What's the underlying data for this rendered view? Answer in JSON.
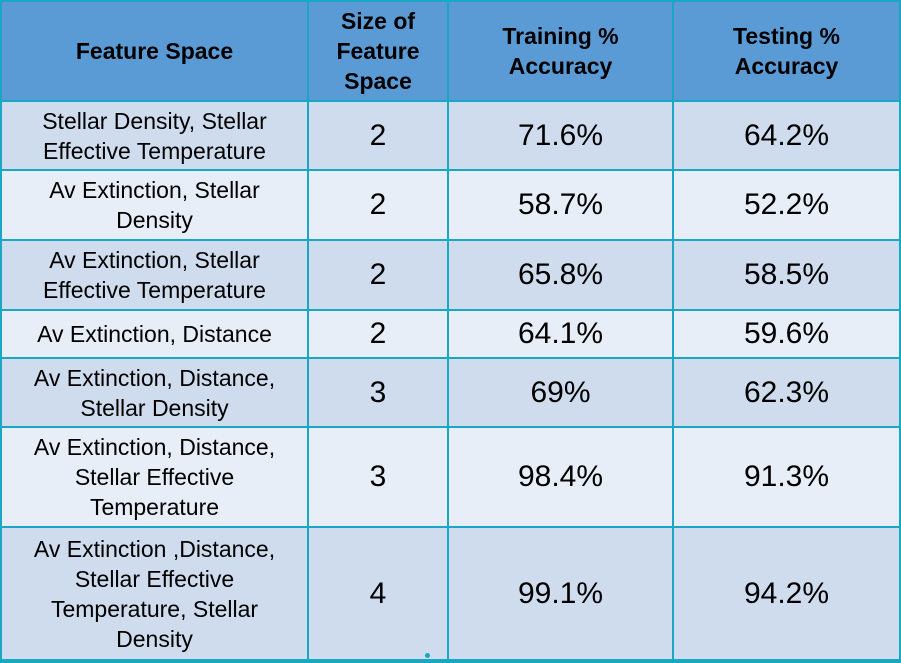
{
  "chart_data": {
    "type": "table",
    "columns": [
      "Feature Space",
      "Size of Feature Space",
      "Training % Accuracy",
      "Testing % Accuracy"
    ],
    "rows": [
      {
        "feature_space": "Stellar Density, Stellar Effective Temperature",
        "size": "2",
        "training": "71.6%",
        "testing": "64.2%"
      },
      {
        "feature_space": "Av Extinction, Stellar Density",
        "size": "2",
        "training": "58.7%",
        "testing": "52.2%"
      },
      {
        "feature_space": "Av Extinction, Stellar Effective Temperature",
        "size": "2",
        "training": "65.8%",
        "testing": "58.5%"
      },
      {
        "feature_space": "Av Extinction, Distance",
        "size": "2",
        "training": "64.1%",
        "testing": "59.6%"
      },
      {
        "feature_space": "Av Extinction, Distance, Stellar Density",
        "size": "3",
        "training": "69%",
        "testing": "62.3%"
      },
      {
        "feature_space": "Av Extinction, Distance, Stellar Effective Temperature",
        "size": "3",
        "training": "98.4%",
        "testing": "91.3%"
      },
      {
        "feature_space": "Av Extinction ,Distance, Stellar Effective Temperature, Stellar Density",
        "size": "4",
        "training": "99.1%",
        "testing": "94.2%"
      }
    ]
  },
  "colors": {
    "header": "#5b9bd5",
    "row_odd": "#cfdcee",
    "row_even": "#e8eef7",
    "border": "#1aa7c4"
  }
}
